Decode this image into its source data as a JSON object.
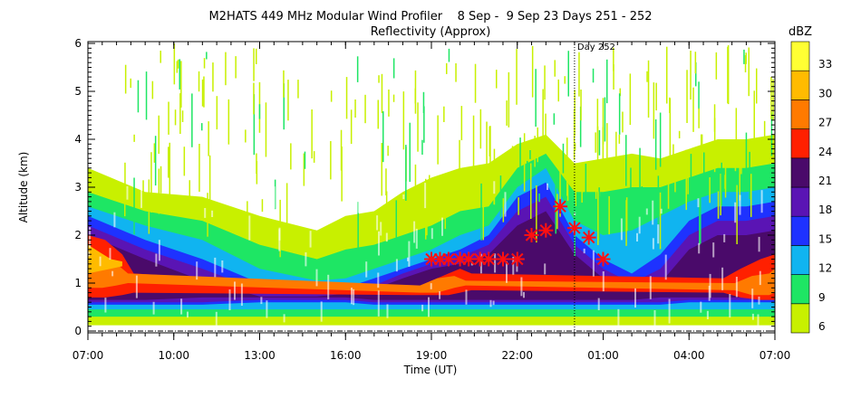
{
  "chart_data": {
    "type": "heatmap",
    "title": "M2HATS 449 MHz Modular Wind Profiler    8 Sep -  9 Sep 23 Days 251 - 252",
    "subtitle": "Reflectivity (Approx)",
    "xlabel": "Time (UT)",
    "ylabel": "Altitude (km)",
    "x_ticks": [
      "07:00",
      "10:00",
      "13:00",
      "16:00",
      "19:00",
      "22:00",
      "01:00",
      "04:00",
      "07:00"
    ],
    "x_range_hours": [
      0,
      24
    ],
    "ylim": [
      0,
      6
    ],
    "y_ticks": [
      "0",
      "1",
      "2",
      "3",
      "4",
      "5",
      "6"
    ],
    "day_marker": {
      "label": "Day 252",
      "x_hours": 17
    },
    "colorbar": {
      "label": "dBZ",
      "ticks": [
        "6",
        "9",
        "12",
        "15",
        "18",
        "21",
        "24",
        "27",
        "30",
        "33"
      ],
      "levels": [
        {
          "min": 6,
          "color": "#c8f000"
        },
        {
          "min": 9,
          "color": "#1ee664"
        },
        {
          "min": 12,
          "color": "#10b4f0"
        },
        {
          "min": 15,
          "color": "#1e32ff"
        },
        {
          "min": 18,
          "color": "#5a14b4"
        },
        {
          "min": 21,
          "color": "#4a0a6a"
        },
        {
          "min": 24,
          "color": "#ff2000"
        },
        {
          "min": 27,
          "color": "#ff7a00"
        },
        {
          "min": 30,
          "color": "#ffbb00"
        },
        {
          "min": 33,
          "color": "#ffff33"
        }
      ]
    },
    "layers": [
      {
        "level": 6,
        "x": [
          0,
          2,
          4,
          6,
          8,
          9,
          10,
          11,
          12,
          13,
          14,
          15,
          16,
          17,
          18,
          19,
          20,
          21,
          22,
          23,
          24
        ],
        "bottom": [
          0.12,
          0.12,
          0.12,
          0.12,
          0.12,
          0.12,
          0.12,
          0.12,
          0.12,
          0.12,
          0.12,
          0.12,
          0.12,
          0.12,
          0.12,
          0.12,
          0.12,
          0.12,
          0.12,
          0.12,
          0.12
        ],
        "top": [
          3.4,
          2.9,
          2.8,
          2.4,
          2.1,
          2.4,
          2.5,
          2.9,
          3.2,
          3.4,
          3.5,
          3.9,
          4.1,
          3.5,
          3.6,
          3.7,
          3.6,
          3.8,
          4.0,
          4.0,
          4.1
        ]
      },
      {
        "level": 9,
        "x": [
          0,
          2,
          4,
          6,
          8,
          9,
          10,
          11,
          12,
          13,
          14,
          15,
          16,
          17,
          18,
          19,
          20,
          21,
          22,
          23,
          24
        ],
        "bottom": [
          0.3,
          0.3,
          0.3,
          0.3,
          0.3,
          0.3,
          0.3,
          0.3,
          0.3,
          0.3,
          0.3,
          0.3,
          0.3,
          0.3,
          0.3,
          0.3,
          0.3,
          0.3,
          0.3,
          0.3,
          0.3
        ],
        "top": [
          2.9,
          2.5,
          2.3,
          1.8,
          1.5,
          1.7,
          1.8,
          2.0,
          2.2,
          2.5,
          2.6,
          3.4,
          3.7,
          2.9,
          2.9,
          3.0,
          3.0,
          3.2,
          3.4,
          3.4,
          3.5
        ]
      },
      {
        "level": 12,
        "x": [
          0,
          2,
          4,
          6,
          8,
          9,
          10,
          11,
          12,
          13,
          14,
          15,
          16,
          17,
          18,
          19,
          20,
          21,
          22,
          23,
          24
        ],
        "bottom": [
          0.45,
          0.45,
          0.45,
          0.45,
          0.45,
          0.45,
          0.45,
          0.45,
          0.45,
          0.45,
          0.45,
          0.45,
          0.45,
          0.45,
          0.45,
          0.45,
          0.45,
          0.45,
          0.45,
          0.45,
          0.45
        ],
        "top": [
          2.6,
          2.2,
          1.9,
          1.3,
          1.05,
          1.1,
          1.3,
          1.5,
          1.7,
          2.0,
          2.2,
          3.0,
          3.4,
          2.3,
          2.0,
          2.1,
          2.4,
          2.7,
          2.9,
          2.9,
          3.0
        ]
      },
      {
        "level": 15,
        "x": [
          0,
          2,
          4,
          6,
          7,
          8,
          9,
          10,
          11,
          12,
          13,
          14,
          15,
          16,
          17,
          18,
          19,
          20,
          21,
          22,
          23,
          24
        ],
        "bottom": [
          0.55,
          0.55,
          0.55,
          0.6,
          0.6,
          0.6,
          0.6,
          0.55,
          0.55,
          0.55,
          0.55,
          0.55,
          0.55,
          0.55,
          0.55,
          0.55,
          0.55,
          0.55,
          0.6,
          0.6,
          0.6,
          0.6
        ],
        "top": [
          2.4,
          1.9,
          1.5,
          1.0,
          0.9,
          0.85,
          0.9,
          1.1,
          1.3,
          1.5,
          1.7,
          2.0,
          2.8,
          3.1,
          2.0,
          1.5,
          1.2,
          1.6,
          2.3,
          2.6,
          2.6,
          2.7
        ]
      },
      {
        "level": 18,
        "x": [
          0,
          2,
          4,
          6,
          7,
          8,
          9,
          10,
          11,
          12,
          13,
          14,
          15,
          16,
          17,
          18,
          19,
          20,
          21,
          22,
          23,
          24
        ],
        "bottom": [
          0.6,
          0.6,
          0.6,
          0.65,
          0.65,
          0.65,
          0.65,
          0.6,
          0.6,
          0.6,
          0.6,
          0.6,
          0.6,
          0.6,
          0.6,
          0.6,
          0.6,
          0.6,
          0.65,
          0.65,
          0.65,
          0.65
        ],
        "top": [
          2.2,
          1.7,
          1.3,
          0.85,
          0.8,
          0.78,
          0.8,
          0.95,
          1.2,
          1.4,
          1.55,
          1.8,
          2.5,
          2.8,
          1.8,
          1.3,
          1.0,
          1.3,
          2.0,
          2.3,
          2.3,
          2.4
        ]
      },
      {
        "level": 21,
        "x": [
          0,
          2,
          4,
          6,
          8,
          9,
          10,
          11,
          12,
          13,
          14,
          15,
          16,
          17,
          18,
          19,
          20,
          21,
          22,
          23,
          24
        ],
        "bottom": [
          0.65,
          0.65,
          0.7,
          0.7,
          0.7,
          0.7,
          0.65,
          0.65,
          0.65,
          0.65,
          0.65,
          0.65,
          0.65,
          0.65,
          0.65,
          0.65,
          0.7,
          0.7,
          0.7,
          0.7,
          0.7
        ],
        "top": [
          2.0,
          1.5,
          1.05,
          0.72,
          0.72,
          0.78,
          0.88,
          1.1,
          1.3,
          1.4,
          1.6,
          2.2,
          2.5,
          1.6,
          1.1,
          0.85,
          1.0,
          1.7,
          2.0,
          2.0,
          2.1
        ]
      },
      {
        "level": 24,
        "x": [
          0,
          0.6,
          1.2,
          1.6,
          11.3,
          12,
          12.6,
          13,
          13.4,
          22.2,
          22.8,
          23.5,
          24
        ],
        "bottom": [
          0.7,
          0.7,
          0.75,
          0.8,
          0.75,
          0.75,
          0.75,
          0.8,
          0.85,
          0.8,
          0.7,
          0.65,
          0.65
        ],
        "top": [
          2.0,
          1.9,
          1.6,
          1.2,
          0.85,
          1.05,
          1.2,
          1.3,
          1.2,
          1.1,
          1.3,
          1.5,
          1.6
        ]
      },
      {
        "level": 27,
        "x": [
          0,
          0.5,
          1.0,
          1.4,
          11.6,
          12.2,
          12.8,
          13.2,
          22.6,
          23.2,
          23.8,
          24
        ],
        "bottom": [
          0.9,
          0.9,
          0.95,
          1.0,
          0.8,
          0.8,
          0.9,
          0.95,
          0.85,
          0.75,
          0.75,
          0.8
        ],
        "top": [
          1.8,
          1.6,
          1.4,
          1.2,
          0.95,
          1.1,
          1.15,
          1.05,
          1.0,
          1.15,
          1.2,
          1.3
        ]
      },
      {
        "level": 30,
        "x": [
          0,
          0.4,
          0.8,
          1.2
        ],
        "bottom": [
          1.2,
          1.25,
          1.3,
          1.35
        ],
        "top": [
          1.8,
          1.65,
          1.5,
          1.45
        ]
      }
    ],
    "markers": {
      "symbol": "red asterisk",
      "color": "#ff1010",
      "points": [
        {
          "x_hours": 12.0,
          "alt_km": 1.5
        },
        {
          "x_hours": 12.3,
          "alt_km": 1.5
        },
        {
          "x_hours": 12.6,
          "alt_km": 1.5
        },
        {
          "x_hours": 13.0,
          "alt_km": 1.5
        },
        {
          "x_hours": 13.3,
          "alt_km": 1.5
        },
        {
          "x_hours": 13.7,
          "alt_km": 1.5
        },
        {
          "x_hours": 14.0,
          "alt_km": 1.5
        },
        {
          "x_hours": 14.5,
          "alt_km": 1.5
        },
        {
          "x_hours": 15.0,
          "alt_km": 1.5
        },
        {
          "x_hours": 15.5,
          "alt_km": 2.0
        },
        {
          "x_hours": 16.0,
          "alt_km": 2.1
        },
        {
          "x_hours": 16.5,
          "alt_km": 2.6
        },
        {
          "x_hours": 17.0,
          "alt_km": 2.15
        },
        {
          "x_hours": 17.5,
          "alt_km": 1.95
        },
        {
          "x_hours": 18.0,
          "alt_km": 1.5
        }
      ]
    }
  }
}
